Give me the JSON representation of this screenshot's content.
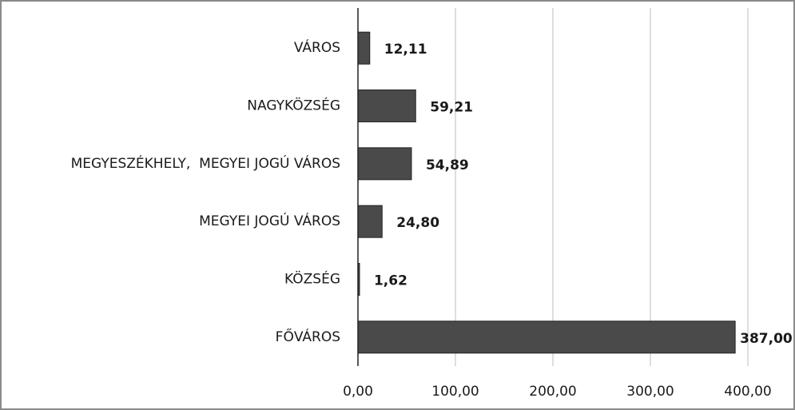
{
  "chart_data": {
    "type": "barh",
    "categories": [
      "VÁROS",
      "NAGYKÖZSÉG",
      "MEGYESZÉKHELY,  MEGYEI JOGÚ VÁROS",
      "MEGYEI JOGÚ VÁROS",
      "KÖZSÉG",
      "FŐVÁROS"
    ],
    "values": [
      12.11,
      59.21,
      54.89,
      24.8,
      1.62,
      387
    ],
    "value_labels": [
      "12,11",
      "59,21",
      "54,89",
      "24,80",
      "1,62",
      "387,00"
    ],
    "color": "#4a4a4a",
    "xlim": [
      0,
      400
    ],
    "xticks": [
      {
        "value": 0,
        "label": "0,00"
      },
      {
        "value": 100,
        "label": "100,00"
      },
      {
        "value": 200,
        "label": "200,00"
      },
      {
        "value": 300,
        "label": "300,00"
      },
      {
        "value": 400,
        "label": "400,00"
      }
    ],
    "grid": true
  }
}
